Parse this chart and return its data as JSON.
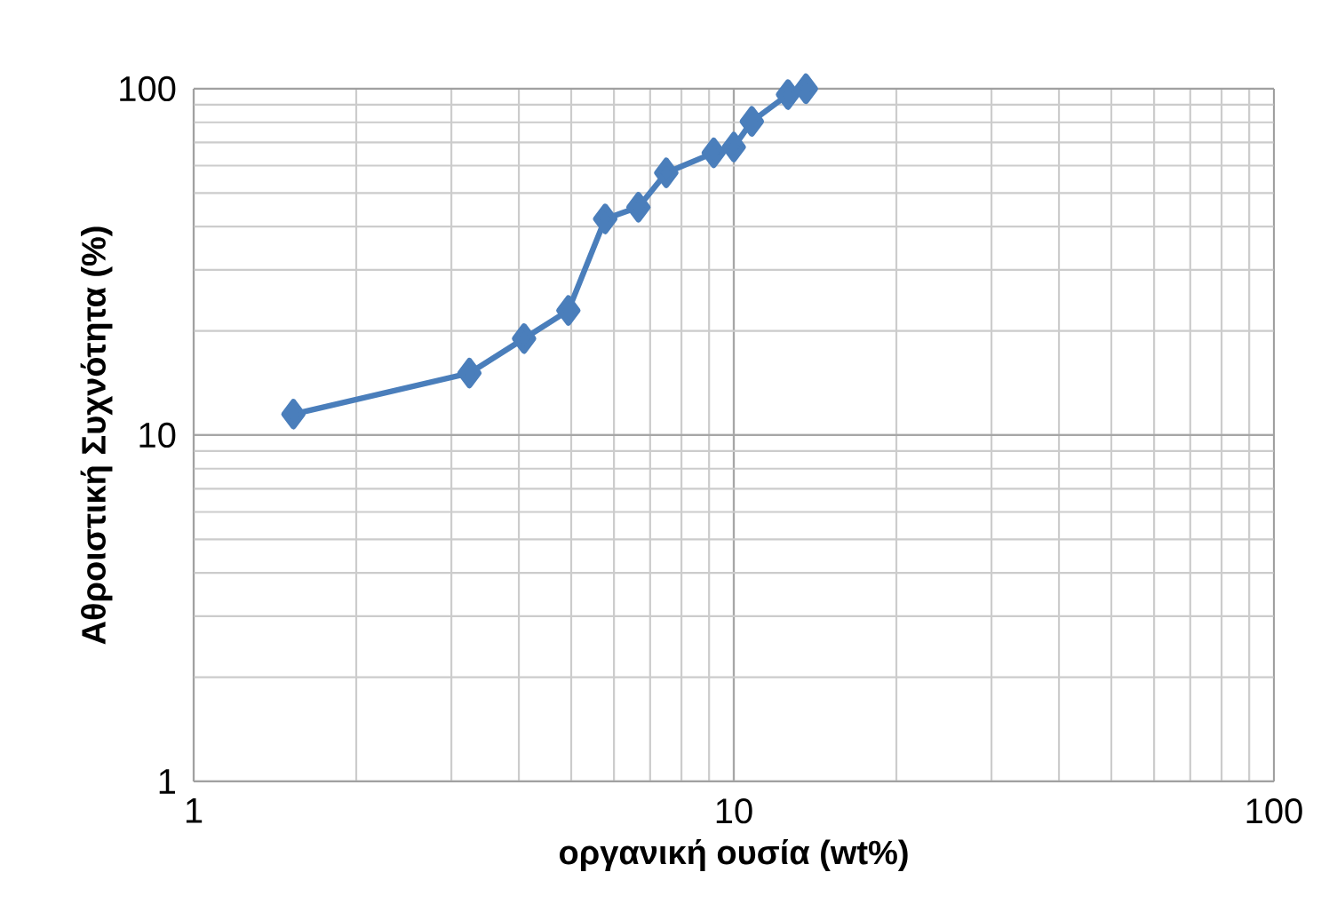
{
  "chart_data": {
    "type": "line",
    "xlabel": "οργανική ουσία (wt%)",
    "ylabel": "Αθροιστική Συχνότητα (%)",
    "x": [
      1.53,
      3.24,
      4.09,
      4.94,
      5.78,
      6.66,
      7.5,
      9.18,
      10.0,
      10.8,
      12.6,
      13.6
    ],
    "series": [
      {
        "color": "#4a7ebb",
        "values": [
          11.5,
          15.1,
          19.0,
          22.9,
          42.1,
          45.5,
          57.2,
          65.3,
          67.9,
          80.5,
          96.2,
          100
        ]
      }
    ],
    "xlim": [
      1,
      100
    ],
    "ylim": [
      1,
      100
    ],
    "xticks": [
      1,
      10,
      100
    ],
    "yticks": [
      1,
      10,
      100
    ],
    "log": "xy",
    "grid": true,
    "marker": "diamond",
    "line_style": "solid"
  }
}
